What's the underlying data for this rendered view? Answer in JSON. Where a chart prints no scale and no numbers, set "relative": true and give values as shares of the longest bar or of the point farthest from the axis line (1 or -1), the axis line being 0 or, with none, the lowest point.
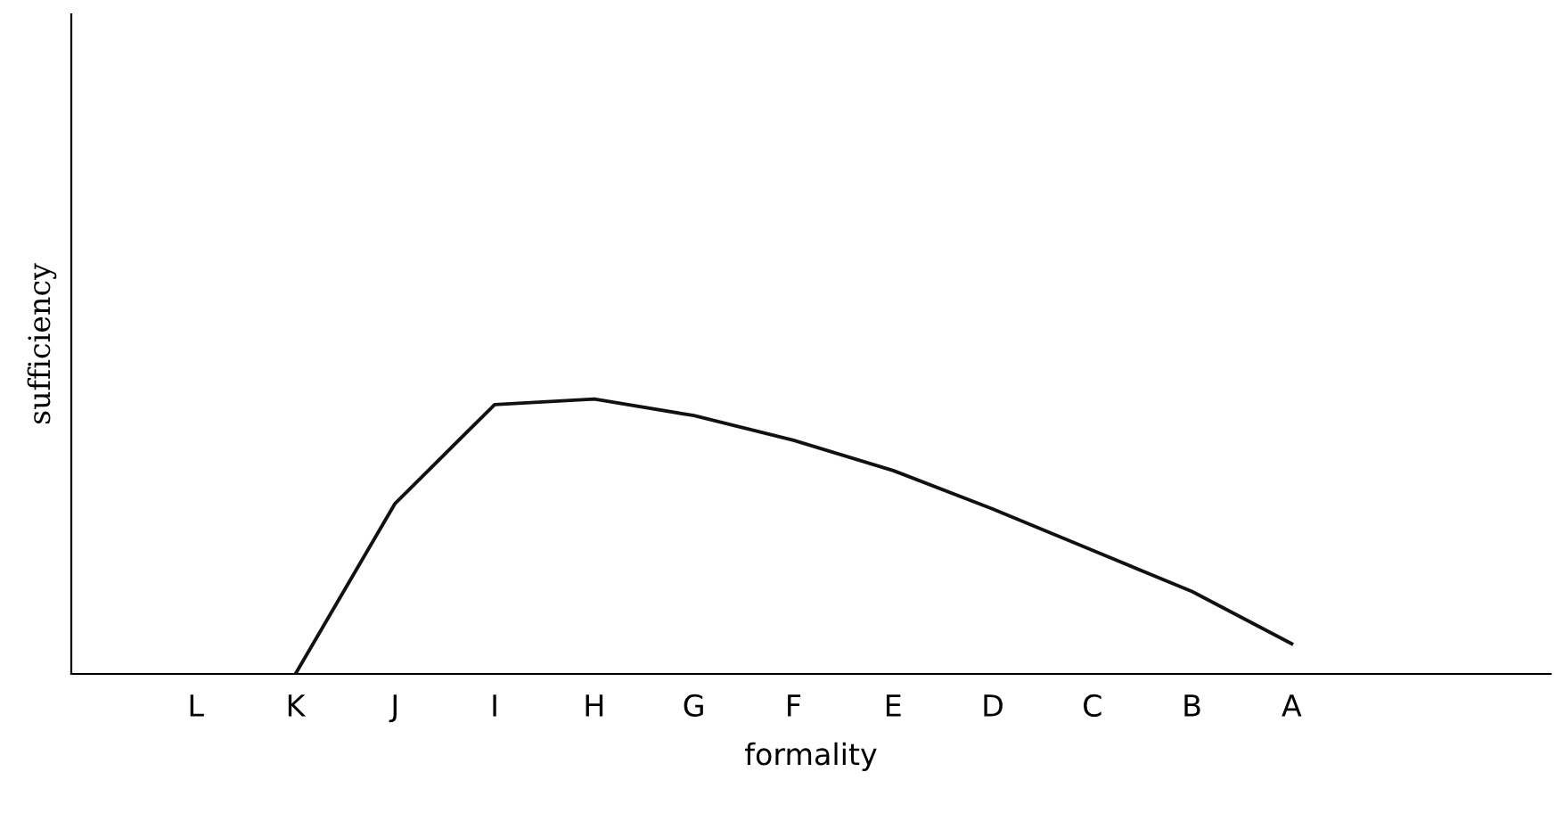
{
  "chart_data": {
    "type": "line",
    "relative": true,
    "xlabel": "formality",
    "ylabel": "sufficiency",
    "categories": [
      "L",
      "K",
      "J",
      "I",
      "H",
      "G",
      "F",
      "E",
      "D",
      "C",
      "B",
      "A"
    ],
    "series": [
      {
        "color": "#111111",
        "values": [
          null,
          0,
          0.62,
          0.98,
          1.0,
          0.94,
          0.85,
          0.74,
          0.6,
          0.45,
          0.3,
          0.11
        ]
      }
    ],
    "grid": false,
    "legend": false,
    "marker": "none",
    "line_style": "solid"
  }
}
